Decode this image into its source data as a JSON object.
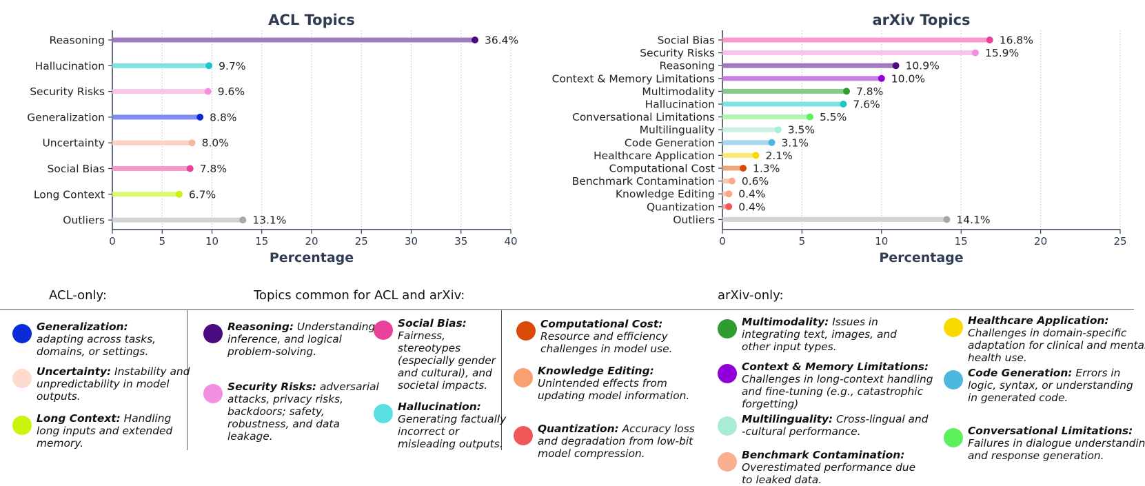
{
  "chart_data": [
    {
      "type": "bar",
      "title": "ACL Topics",
      "xlabel": "Percentage",
      "ylabel": "",
      "xlim": [
        0,
        40
      ],
      "xticks": [
        0,
        5,
        10,
        15,
        20,
        25,
        30,
        35,
        40
      ],
      "grid": "vertical dotted",
      "orientation": "horizontal",
      "categories": [
        "Reasoning",
        "Hallucination",
        "Security Risks",
        "Generalization",
        "Uncertainty",
        "Social Bias",
        "Long Context",
        "Outliers"
      ],
      "values": [
        36.4,
        9.7,
        9.6,
        8.8,
        8.0,
        7.8,
        6.7,
        13.1
      ],
      "labels": [
        "36.4%",
        "9.7%",
        "9.6%",
        "8.8%",
        "8.0%",
        "7.8%",
        "6.7%",
        "13.1%"
      ],
      "bar_colors": [
        "#a07cbf",
        "#80e2e2",
        "#f7c4ea",
        "#7f8cf0",
        "#fdd1c4",
        "#f59acb",
        "#dbfa6d",
        "#d3d3d3"
      ],
      "dot_colors": [
        "#4b0a7f",
        "#1ec8c8",
        "#f38fe0",
        "#0a2ad8",
        "#f7b6a1",
        "#e8409b",
        "#c8f50a",
        "#a8a8a8"
      ]
    },
    {
      "type": "bar",
      "title": "arXiv Topics",
      "xlabel": "Percentage",
      "ylabel": "",
      "xlim": [
        0,
        25
      ],
      "xticks": [
        0,
        5,
        10,
        15,
        20,
        25
      ],
      "grid": "vertical dotted",
      "orientation": "horizontal",
      "categories": [
        "Social Bias",
        "Security Risks",
        "Reasoning",
        "Context & Memory Limitations",
        "Multimodality",
        "Hallucination",
        "Conversational Limitations",
        "Multilinguality",
        "Code Generation",
        "Healthcare Application",
        "Computational Cost",
        "Benchmark Contamination",
        "Knowledge Editing",
        "Quantization",
        "Outliers"
      ],
      "values": [
        16.8,
        15.9,
        10.9,
        10.0,
        7.8,
        7.6,
        5.5,
        3.5,
        3.1,
        2.1,
        1.3,
        0.6,
        0.4,
        0.4,
        14.1
      ],
      "labels": [
        "16.8%",
        "15.9%",
        "10.9%",
        "10.0%",
        "7.8%",
        "7.6%",
        "5.5%",
        "3.5%",
        "3.1%",
        "2.1%",
        "1.3%",
        "0.6%",
        "0.4%",
        "0.4%",
        "14.1%"
      ],
      "bar_colors": [
        "#f59acb",
        "#f7c4ea",
        "#a07cbf",
        "#c97fe6",
        "#88c98c",
        "#80e2e2",
        "#b0f5b0",
        "#ccf3e2",
        "#a6d7ec",
        "#fbe878",
        "#eca77f",
        "#f9c8b0",
        "#f9c8b0",
        "#f5a3a3",
        "#d3d3d3"
      ],
      "dot_colors": [
        "#e8409b",
        "#f38fe0",
        "#4b0a7f",
        "#9200d8",
        "#2e9c2e",
        "#1ec8c8",
        "#5cf05c",
        "#a8ecd4",
        "#4cb8e0",
        "#f8da00",
        "#d94a0a",
        "#f9a888",
        "#f9a888",
        "#f05757",
        "#a8a8a8"
      ]
    }
  ],
  "legend": {
    "headers": {
      "acl_only": "ACL-only:",
      "common": "Topics common for ACL and arXiv:",
      "arxiv_only": "arXiv-only:"
    },
    "items": [
      {
        "name": "Generalization:",
        "desc": " adapting across tasks, domains, or settings.",
        "color": "#0a2ad8"
      },
      {
        "name": "Uncertainty:",
        "desc": " Instability and unpredictability in model outputs.",
        "color": "#fddacb"
      },
      {
        "name": "Long Context:",
        "desc": " Handling long inputs and extended memory.",
        "color": "#c8f50a"
      },
      {
        "name": "Reasoning:",
        "desc": " Understanding, inference, and logical problem-solving.",
        "color": "#4b0a7f"
      },
      {
        "name": "Security Risks:",
        "desc": " adversarial attacks, privacy risks, backdoors; safety, robustness, and data leakage.",
        "color": "#f38fe0"
      },
      {
        "name": "Social Bias:",
        "desc": " Fairness, stereotypes (especially gender and cultural), and societal impacts.",
        "color": "#e8409b"
      },
      {
        "name": "Hallucination:",
        "desc": " Generating factually incorrect or misleading outputs.",
        "color": "#5ae0e0"
      },
      {
        "name": "Computational Cost:",
        "desc": " Resource and efficiency challenges in model use.",
        "color": "#d94a0a"
      },
      {
        "name": "Knowledge Editing:",
        "desc": " Unintended effects from updating model information.",
        "color": "#f9a070"
      },
      {
        "name": "Quantization:",
        "desc": " Accuracy loss and degradation from low-bit model compression.",
        "color": "#f05757"
      },
      {
        "name": "Multimodality:",
        "desc": " Issues in integrating text, images, and other input types.",
        "color": "#2e9c2e"
      },
      {
        "name": "Context & Memory Limitations:",
        "desc": " Challenges in long-context handling and fine-tuning (e.g., catastrophic forgetting)",
        "color": "#9200d8"
      },
      {
        "name": "Multilinguality:",
        "desc": " Cross-lingual and -cultural performance.",
        "color": "#a8ecd4"
      },
      {
        "name": "Benchmark Contamination:",
        "desc": " Overestimated performance due to leaked data.",
        "color": "#f9b090"
      },
      {
        "name": "Healthcare Application:",
        "desc": " Challenges in domain-specific adaptation for clinical and mental health use.",
        "color": "#f8da00"
      },
      {
        "name": "Code Generation:",
        "desc": " Errors in logic, syntax, or understanding in generated code.",
        "color": "#4cb8e0"
      },
      {
        "name": "Conversational Limitations:",
        "desc": " Failures in dialogue understanding and response generation.",
        "color": "#5cf05c"
      }
    ]
  }
}
